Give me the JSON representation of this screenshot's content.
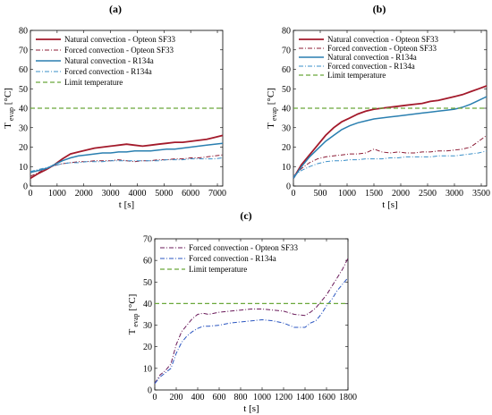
{
  "panel_labels": [
    "(a)",
    "(b)",
    "(c)"
  ],
  "colors": {
    "natural_sf33": "#a31a2b",
    "forced_sf33": "#8c1c36",
    "natural_r134a": "#2a7fb0",
    "forced_r134a": "#3a8fc8",
    "forced_sf33_c": "#6a1a5a",
    "forced_r134a_c": "#2a55c0",
    "limit": "#6aa83a"
  },
  "chart_data": [
    {
      "type": "line",
      "panel": "(a)",
      "xlabel": "t [s]",
      "ylabel": "T",
      "ylabel_sub": "evap",
      "ylabel_unit": "[°C]",
      "xlim": [
        0,
        7200
      ],
      "ylim": [
        0,
        80
      ],
      "xticks": [
        "0",
        "1000",
        "2000",
        "3000",
        "4000",
        "5000",
        "6000",
        "7000"
      ],
      "xtick_values": [
        0,
        1000,
        2000,
        3000,
        4000,
        5000,
        6000,
        7000
      ],
      "yticks": [
        "0",
        "10",
        "20",
        "30",
        "40",
        "50",
        "60",
        "70",
        "80"
      ],
      "ytick_values": [
        0,
        10,
        20,
        30,
        40,
        50,
        60,
        70,
        80
      ],
      "legend_position": "top-left",
      "series": [
        {
          "name": "Natural convection - Opteon SF33",
          "style": "natural_sf33",
          "x": [
            0,
            300,
            600,
            900,
            1200,
            1500,
            1800,
            2100,
            2400,
            2700,
            3000,
            3300,
            3600,
            3900,
            4200,
            4500,
            4800,
            5100,
            5400,
            5700,
            6000,
            6300,
            6600,
            6900,
            7200
          ],
          "y": [
            4,
            6.5,
            8.5,
            11,
            14,
            16.5,
            17.5,
            18.5,
            19.5,
            20,
            20.5,
            21,
            21.5,
            21,
            20.5,
            21,
            21.5,
            22,
            22.5,
            22.5,
            23,
            23.5,
            24,
            25,
            26
          ]
        },
        {
          "name": "Forced convection - Opteon SF33",
          "style": "forced_sf33",
          "x": [
            0,
            300,
            600,
            900,
            1200,
            1500,
            1800,
            2100,
            2400,
            2700,
            3000,
            3300,
            3600,
            3900,
            4200,
            4500,
            4800,
            5100,
            5400,
            5700,
            6000,
            6300,
            6600,
            6900,
            7200
          ],
          "y": [
            5,
            7,
            9,
            10.5,
            11.5,
            12,
            12.5,
            12.5,
            13,
            13,
            13,
            13.5,
            13,
            12.5,
            13,
            13,
            13.5,
            13.5,
            14,
            14,
            14.5,
            14.5,
            15,
            15.5,
            16
          ]
        },
        {
          "name": "Natural convection - R134a",
          "style": "natural_r134a",
          "x": [
            0,
            300,
            600,
            900,
            1200,
            1500,
            1800,
            2100,
            2400,
            2700,
            3000,
            3300,
            3600,
            3900,
            4200,
            4500,
            4800,
            5100,
            5400,
            5700,
            6000,
            6300,
            6600,
            6900,
            7200
          ],
          "y": [
            7,
            8,
            9,
            11,
            13,
            14.5,
            15.5,
            16,
            16.5,
            17,
            17,
            17.5,
            17.5,
            18,
            18,
            18,
            18.5,
            19,
            19,
            19.5,
            20,
            20.5,
            21,
            21.5,
            22
          ]
        },
        {
          "name": "Forced convection - R134a",
          "style": "forced_r134a",
          "x": [
            0,
            300,
            600,
            900,
            1200,
            1500,
            1800,
            2100,
            2400,
            2700,
            3000,
            3300,
            3600,
            3900,
            4200,
            4500,
            4800,
            5100,
            5400,
            5700,
            6000,
            6300,
            6600,
            6900,
            7200
          ],
          "y": [
            7.5,
            8.5,
            9.5,
            10.5,
            11.5,
            12,
            12,
            12.5,
            12.5,
            12.5,
            13,
            13,
            13,
            13,
            13,
            13,
            13,
            13.5,
            13.5,
            13.5,
            14,
            14,
            14,
            14,
            14.5
          ]
        },
        {
          "name": "Limit temperature",
          "style": "limit",
          "x": [
            0,
            7200
          ],
          "y": [
            40,
            40
          ]
        }
      ]
    },
    {
      "type": "line",
      "panel": "(b)",
      "xlabel": "t [s]",
      "ylabel": "T",
      "ylabel_sub": "evap",
      "ylabel_unit": "[°C]",
      "xlim": [
        0,
        3600
      ],
      "ylim": [
        0,
        80
      ],
      "xticks": [
        "0",
        "500",
        "1000",
        "1500",
        "2000",
        "2500",
        "3000",
        "3500"
      ],
      "xtick_values": [
        0,
        500,
        1000,
        1500,
        2000,
        2500,
        3000,
        3500
      ],
      "yticks": [
        "0",
        "10",
        "20",
        "30",
        "40",
        "50",
        "60",
        "70",
        "80"
      ],
      "ytick_values": [
        0,
        10,
        20,
        30,
        40,
        50,
        60,
        70,
        80
      ],
      "legend_position": "top-left",
      "series": [
        {
          "name": "Natural convection - Opteon SF33",
          "style": "natural_sf33",
          "x": [
            0,
            150,
            300,
            450,
            600,
            750,
            900,
            1050,
            1200,
            1350,
            1500,
            1650,
            1800,
            1950,
            2100,
            2250,
            2400,
            2550,
            2700,
            2850,
            3000,
            3150,
            3300,
            3450,
            3600
          ],
          "y": [
            4,
            11,
            16,
            21,
            26,
            30,
            33,
            35,
            37,
            38.5,
            39.5,
            40,
            40.5,
            41,
            41.5,
            42,
            42.5,
            43.5,
            44,
            45,
            46,
            47,
            48.5,
            50,
            51.5
          ]
        },
        {
          "name": "Forced convection - Opteon SF33",
          "style": "forced_sf33",
          "x": [
            0,
            150,
            300,
            450,
            600,
            750,
            900,
            1050,
            1200,
            1350,
            1500,
            1650,
            1800,
            1950,
            2100,
            2250,
            2400,
            2550,
            2700,
            2850,
            3000,
            3150,
            3300,
            3450,
            3600
          ],
          "y": [
            5,
            9,
            12,
            14,
            15,
            15.5,
            16,
            16.5,
            16.5,
            17,
            19,
            17.5,
            17,
            17.5,
            17,
            17,
            17.5,
            17.5,
            18,
            18,
            18.5,
            19,
            20,
            23,
            26
          ]
        },
        {
          "name": "Natural convection - R134a",
          "style": "natural_r134a",
          "x": [
            0,
            150,
            300,
            450,
            600,
            750,
            900,
            1050,
            1200,
            1350,
            1500,
            1650,
            1800,
            1950,
            2100,
            2250,
            2400,
            2550,
            2700,
            2850,
            3000,
            3150,
            3300,
            3450,
            3600
          ],
          "y": [
            4,
            10,
            15,
            19,
            23,
            26,
            29,
            31,
            32.5,
            33.5,
            34.5,
            35,
            35.5,
            36,
            36.5,
            37,
            37.5,
            38,
            38.5,
            39,
            39.5,
            40.5,
            42,
            44,
            46
          ]
        },
        {
          "name": "Forced convection - R134a",
          "style": "forced_r134a",
          "x": [
            0,
            150,
            300,
            450,
            600,
            750,
            900,
            1050,
            1200,
            1350,
            1500,
            1650,
            1800,
            1950,
            2100,
            2250,
            2400,
            2550,
            2700,
            2850,
            3000,
            3150,
            3300,
            3450,
            3600
          ],
          "y": [
            5,
            8,
            10,
            11.5,
            12.5,
            13,
            13,
            13.5,
            13.5,
            14,
            14,
            14,
            14.5,
            14.5,
            15,
            15,
            15,
            15,
            15.5,
            15.5,
            15.5,
            16,
            16.5,
            17,
            18
          ]
        },
        {
          "name": "Limit temperature",
          "style": "limit",
          "x": [
            0,
            3600
          ],
          "y": [
            40,
            40
          ]
        }
      ]
    },
    {
      "type": "line",
      "panel": "(c)",
      "xlabel": "t [s]",
      "ylabel": "T",
      "ylabel_sub": "evap",
      "ylabel_unit": "[°C]",
      "xlim": [
        0,
        1800
      ],
      "ylim": [
        0,
        70
      ],
      "xticks": [
        "0",
        "200",
        "400",
        "600",
        "800",
        "1000",
        "1200",
        "1400",
        "1600",
        "1800"
      ],
      "xtick_values": [
        0,
        200,
        400,
        600,
        800,
        1000,
        1200,
        1400,
        1600,
        1800
      ],
      "yticks": [
        "0",
        "10",
        "20",
        "30",
        "40",
        "50",
        "60",
        "70"
      ],
      "ytick_values": [
        0,
        10,
        20,
        30,
        40,
        50,
        60,
        70
      ],
      "legend_position": "top-left",
      "series": [
        {
          "name": "Forced convection - Opteon SF33",
          "style": "forced_sf33_c",
          "x": [
            0,
            50,
            100,
            150,
            200,
            250,
            300,
            350,
            400,
            450,
            500,
            600,
            700,
            800,
            900,
            1000,
            1100,
            1200,
            1300,
            1400,
            1450,
            1500,
            1550,
            1600,
            1650,
            1700,
            1750,
            1800
          ],
          "y": [
            3,
            7,
            9,
            12,
            21,
            27,
            30,
            33,
            35,
            35.5,
            35,
            36,
            36.5,
            37,
            37.5,
            37.5,
            37,
            36.5,
            35,
            34.5,
            36,
            38,
            41,
            44,
            48,
            52,
            56,
            61
          ]
        },
        {
          "name": "Forced convection - R134a",
          "style": "forced_r134a_c",
          "x": [
            0,
            50,
            100,
            150,
            200,
            250,
            300,
            350,
            400,
            450,
            500,
            600,
            700,
            800,
            900,
            1000,
            1100,
            1200,
            1300,
            1400,
            1450,
            1500,
            1550,
            1600,
            1650,
            1700,
            1750,
            1800
          ],
          "y": [
            3,
            6,
            8,
            10,
            17,
            22,
            25,
            27,
            28.5,
            29.5,
            29.5,
            30,
            31,
            31.5,
            32,
            32.5,
            32,
            31,
            29,
            29,
            31,
            32,
            35,
            39,
            42,
            46,
            49,
            52
          ]
        },
        {
          "name": "Limit temperature",
          "style": "limit",
          "x": [
            0,
            1800
          ],
          "y": [
            40,
            40
          ]
        }
      ]
    }
  ]
}
